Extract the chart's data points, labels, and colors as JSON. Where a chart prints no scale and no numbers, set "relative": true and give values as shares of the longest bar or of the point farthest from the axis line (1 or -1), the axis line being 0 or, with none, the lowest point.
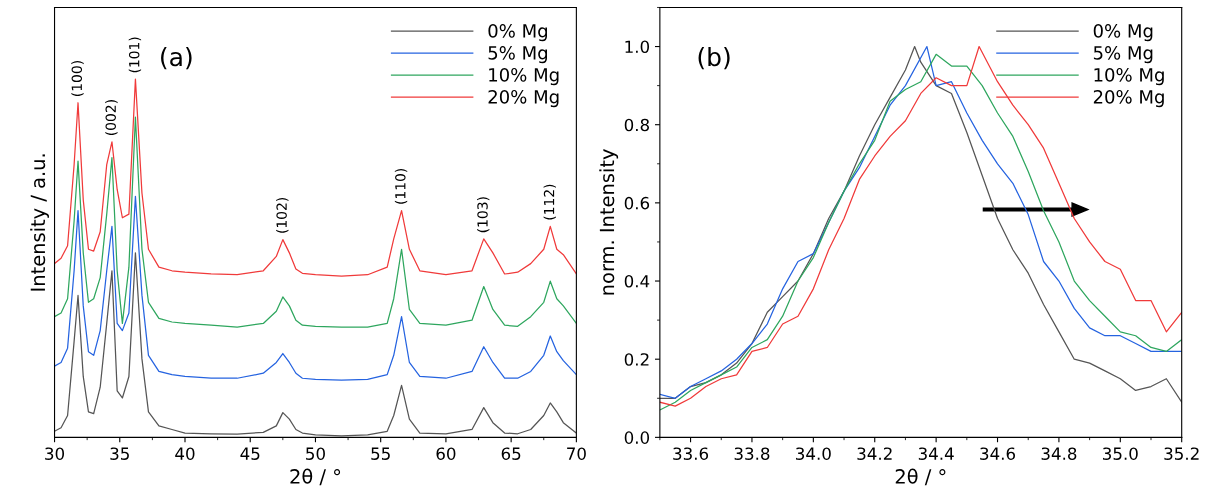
{
  "chart_data": [
    {
      "type": "line",
      "relative": true,
      "xlabel": "2θ / °",
      "ylabel": "Intensity / a.u.",
      "xlim": [
        30,
        70
      ],
      "xticks": [
        30,
        35,
        40,
        45,
        50,
        55,
        60,
        65,
        70
      ],
      "legend": "top right",
      "grid": false,
      "tick_labels": "x",
      "annotations": [
        "(a)",
        {
          "text": "(100)",
          "x": 31.8,
          "y": 0.934
        },
        {
          "text": "(002)",
          "x": 34.4,
          "y": 0.825
        },
        {
          "text": "(101)",
          "x": 36.2,
          "y": 1.0
        },
        {
          "text": "(102)",
          "x": 47.5,
          "y": 0.552
        },
        {
          "text": "(110)",
          "x": 56.6,
          "y": 0.633
        },
        {
          "text": "(103)",
          "x": 62.9,
          "y": 0.554
        },
        {
          "text": "(112)",
          "x": 68,
          "y": 0.589
        }
      ],
      "x": [
        30,
        30.5,
        31,
        31.5,
        31.8,
        32.2,
        32.6,
        33,
        33.5,
        34,
        34.4,
        34.8,
        35.2,
        35.7,
        36.2,
        36.7,
        37.2,
        38,
        39,
        40,
        42,
        44,
        46,
        47,
        47.5,
        48,
        48.5,
        49,
        50,
        52,
        54,
        55.5,
        56,
        56.6,
        57.2,
        58,
        60,
        62,
        62.9,
        63.6,
        64.5,
        65.5,
        66.5,
        67.5,
        68,
        68.5,
        69,
        70
      ],
      "series": [
        {
          "name": "0% Mg",
          "color": "#555555",
          "values": [
            0.017,
            0.027,
            0.061,
            0.268,
            0.396,
            0.17,
            0.071,
            0.066,
            0.14,
            0.318,
            0.465,
            0.13,
            0.11,
            0.17,
            0.515,
            0.219,
            0.071,
            0.032,
            0.022,
            0.012,
            0.01,
            0.009,
            0.014,
            0.032,
            0.069,
            0.051,
            0.022,
            0.012,
            0.007,
            0.004,
            0.007,
            0.017,
            0.061,
            0.145,
            0.051,
            0.012,
            0.01,
            0.022,
            0.083,
            0.041,
            0.012,
            0.01,
            0.022,
            0.061,
            0.096,
            0.071,
            0.041,
            0.012
          ]
        },
        {
          "name": "5% Mg",
          "color": "#2563e0",
          "values": [
            0.199,
            0.209,
            0.249,
            0.465,
            0.633,
            0.367,
            0.239,
            0.229,
            0.298,
            0.465,
            0.589,
            0.318,
            0.298,
            0.347,
            0.673,
            0.397,
            0.229,
            0.184,
            0.175,
            0.17,
            0.165,
            0.165,
            0.179,
            0.209,
            0.234,
            0.209,
            0.179,
            0.165,
            0.162,
            0.16,
            0.162,
            0.175,
            0.229,
            0.337,
            0.209,
            0.17,
            0.165,
            0.184,
            0.253,
            0.209,
            0.165,
            0.165,
            0.184,
            0.229,
            0.283,
            0.239,
            0.214,
            0.175
          ]
        },
        {
          "name": "10% Mg",
          "color": "#2ea65e",
          "values": [
            0.337,
            0.347,
            0.387,
            0.604,
            0.771,
            0.515,
            0.377,
            0.387,
            0.446,
            0.623,
            0.781,
            0.465,
            0.318,
            0.475,
            0.894,
            0.525,
            0.377,
            0.332,
            0.322,
            0.318,
            0.313,
            0.308,
            0.318,
            0.352,
            0.392,
            0.367,
            0.327,
            0.313,
            0.31,
            0.308,
            0.308,
            0.318,
            0.387,
            0.525,
            0.357,
            0.318,
            0.313,
            0.327,
            0.421,
            0.357,
            0.313,
            0.31,
            0.337,
            0.377,
            0.436,
            0.387,
            0.367,
            0.318
          ]
        },
        {
          "name": "20% Mg",
          "color": "#f03a3a",
          "values": [
            0.485,
            0.5,
            0.535,
            0.761,
            0.934,
            0.663,
            0.525,
            0.52,
            0.574,
            0.761,
            0.825,
            0.692,
            0.613,
            0.623,
            1.0,
            0.682,
            0.525,
            0.475,
            0.465,
            0.461,
            0.456,
            0.454,
            0.465,
            0.505,
            0.552,
            0.515,
            0.47,
            0.458,
            0.454,
            0.45,
            0.454,
            0.475,
            0.554,
            0.633,
            0.525,
            0.465,
            0.454,
            0.465,
            0.554,
            0.515,
            0.456,
            0.461,
            0.485,
            0.525,
            0.589,
            0.525,
            0.51,
            0.456
          ]
        }
      ]
    },
    {
      "type": "line",
      "xlabel": "2θ / °",
      "ylabel": "norm. Intensity",
      "xlim": [
        33.5,
        35.2
      ],
      "ylim": [
        0,
        1.1
      ],
      "xticks": [
        {
          "value": 33.6,
          "label": "33.6"
        },
        {
          "value": 33.8,
          "label": "33.8"
        },
        {
          "value": 34.0,
          "label": "34.0"
        },
        {
          "value": 34.2,
          "label": "34.2"
        },
        {
          "value": 34.4,
          "label": "34.4"
        },
        {
          "value": 34.6,
          "label": "34.6"
        },
        {
          "value": 34.8,
          "label": "34.8"
        },
        {
          "value": 35.0,
          "label": "35.0"
        },
        {
          "value": 35.2,
          "label": "35.2"
        }
      ],
      "yticks": [
        {
          "value": 0,
          "label": "0.0"
        },
        {
          "value": 0.2,
          "label": "0.2"
        },
        {
          "value": 0.4,
          "label": "0.4"
        },
        {
          "value": 0.6,
          "label": "0.6"
        },
        {
          "value": 0.8,
          "label": "0.8"
        },
        {
          "value": 1.0,
          "label": "1.0"
        }
      ],
      "legend": "top right",
      "grid": false,
      "annotations": [
        "(b)"
      ],
      "series": [
        {
          "name": "0% Mg",
          "color": "#555555",
          "x": [
            33.5,
            33.55,
            33.6,
            33.65,
            33.7,
            33.75,
            33.8,
            33.85,
            33.9,
            33.95,
            34.0,
            34.05,
            34.1,
            34.15,
            34.2,
            34.25,
            34.3,
            34.33,
            34.35,
            34.4,
            34.45,
            34.5,
            34.55,
            34.6,
            34.65,
            34.7,
            34.75,
            34.8,
            34.85,
            34.9,
            34.95,
            35.0,
            35.05,
            35.1,
            35.15,
            35.2
          ],
          "values": [
            0.1,
            0.1,
            0.13,
            0.14,
            0.16,
            0.19,
            0.24,
            0.32,
            0.36,
            0.4,
            0.47,
            0.56,
            0.63,
            0.72,
            0.8,
            0.87,
            0.94,
            1.0,
            0.96,
            0.9,
            0.88,
            0.78,
            0.67,
            0.56,
            0.48,
            0.42,
            0.34,
            0.27,
            0.2,
            0.19,
            0.17,
            0.15,
            0.12,
            0.13,
            0.15,
            0.09
          ]
        },
        {
          "name": "5% Mg",
          "color": "#2563e0",
          "x": [
            33.5,
            33.55,
            33.6,
            33.65,
            33.7,
            33.75,
            33.8,
            33.85,
            33.9,
            33.95,
            34.0,
            34.05,
            34.1,
            34.15,
            34.2,
            34.25,
            34.3,
            34.37,
            34.4,
            34.45,
            34.5,
            34.55,
            34.6,
            34.65,
            34.7,
            34.75,
            34.8,
            34.85,
            34.9,
            34.95,
            35.0,
            35.05,
            35.1,
            35.15,
            35.2
          ],
          "values": [
            0.11,
            0.1,
            0.13,
            0.15,
            0.17,
            0.2,
            0.24,
            0.29,
            0.38,
            0.45,
            0.47,
            0.55,
            0.63,
            0.69,
            0.77,
            0.85,
            0.9,
            1.0,
            0.9,
            0.91,
            0.83,
            0.76,
            0.7,
            0.65,
            0.57,
            0.45,
            0.4,
            0.33,
            0.28,
            0.26,
            0.26,
            0.24,
            0.22,
            0.22,
            0.22
          ]
        },
        {
          "name": "10% Mg",
          "color": "#2ea65e",
          "x": [
            33.5,
            33.55,
            33.6,
            33.65,
            33.7,
            33.75,
            33.8,
            33.85,
            33.9,
            33.95,
            34.0,
            34.05,
            34.1,
            34.15,
            34.2,
            34.25,
            34.3,
            34.35,
            34.4,
            34.45,
            34.5,
            34.55,
            34.6,
            34.65,
            34.7,
            34.75,
            34.8,
            34.85,
            34.9,
            34.95,
            35.0,
            35.05,
            35.1,
            35.15,
            35.2
          ],
          "values": [
            0.07,
            0.09,
            0.12,
            0.14,
            0.16,
            0.18,
            0.23,
            0.25,
            0.31,
            0.4,
            0.46,
            0.55,
            0.63,
            0.7,
            0.76,
            0.86,
            0.89,
            0.91,
            0.98,
            0.95,
            0.95,
            0.9,
            0.83,
            0.77,
            0.68,
            0.58,
            0.5,
            0.4,
            0.35,
            0.31,
            0.27,
            0.26,
            0.23,
            0.22,
            0.25
          ]
        },
        {
          "name": "20% Mg",
          "color": "#f03a3a",
          "x": [
            33.5,
            33.55,
            33.6,
            33.65,
            33.7,
            33.75,
            33.8,
            33.85,
            33.9,
            33.95,
            34.0,
            34.05,
            34.1,
            34.15,
            34.2,
            34.25,
            34.3,
            34.35,
            34.4,
            34.45,
            34.5,
            34.54,
            34.6,
            34.65,
            34.7,
            34.75,
            34.8,
            34.85,
            34.9,
            34.95,
            35.0,
            35.05,
            35.1,
            35.15,
            35.2
          ],
          "values": [
            0.09,
            0.08,
            0.1,
            0.13,
            0.15,
            0.16,
            0.22,
            0.23,
            0.29,
            0.31,
            0.38,
            0.48,
            0.56,
            0.66,
            0.72,
            0.77,
            0.81,
            0.88,
            0.92,
            0.9,
            0.9,
            1.0,
            0.91,
            0.85,
            0.8,
            0.74,
            0.65,
            0.56,
            0.5,
            0.45,
            0.43,
            0.35,
            0.35,
            0.27,
            0.32
          ]
        }
      ]
    }
  ]
}
